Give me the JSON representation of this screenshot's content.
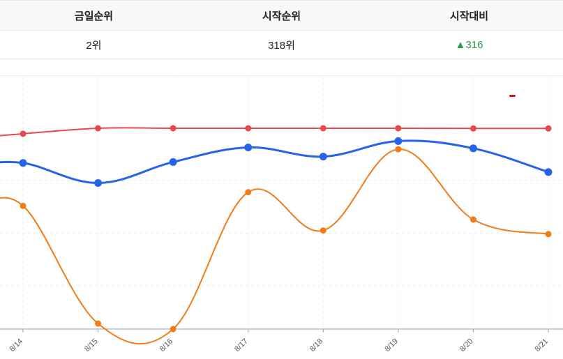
{
  "summary": {
    "headers": [
      "금일순위",
      "시작순위",
      "시작대비"
    ],
    "today_rank": "2위",
    "start_rank": "318위",
    "change_arrow": "▲",
    "change_value": "316",
    "change_color": "#1e9e4a"
  },
  "chart_data": {
    "type": "line",
    "categories": [
      "8/14",
      "8/15",
      "8/16",
      "8/17",
      "8/18",
      "8/19",
      "8/20",
      "8/21"
    ],
    "series": [
      {
        "color": "#e5484d",
        "values": [
          26,
          23,
          23,
          23,
          23,
          23,
          23.1,
          23.1
        ],
        "incoming": 28.5
      },
      {
        "color": "#2563eb",
        "values": [
          42,
          53,
          41.5,
          33.5,
          38.5,
          30,
          34,
          47
        ],
        "incoming": 43.5
      },
      {
        "color": "#f07c1a",
        "values": [
          65.5,
          130,
          133,
          58,
          79,
          34.5,
          73,
          81
        ],
        "incoming": 68
      }
    ],
    "yrange": [
      0,
      133
    ],
    "reversed_y": true,
    "grid": true,
    "legend_marker_color": "#d9141a"
  }
}
